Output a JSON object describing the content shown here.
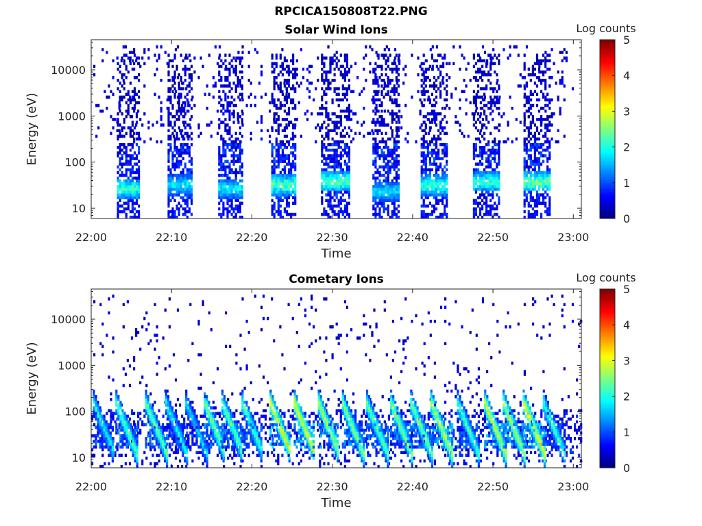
{
  "figure": {
    "title": "RPCICA150808T22.PNG"
  },
  "chart_data": [
    {
      "type": "heatmap",
      "title": "Solar Wind Ions",
      "xlabel": "Time",
      "ylabel": "Energy (eV)",
      "x_ticks": [
        "22:00",
        "22:10",
        "22:20",
        "22:30",
        "22:40",
        "22:50",
        "23:00"
      ],
      "x_range_minutes": [
        0,
        61
      ],
      "y_scale": "log",
      "y_ticks": [
        10,
        100,
        1000,
        10000
      ],
      "y_tick_labels": [
        "10",
        "100",
        "1000",
        "10000"
      ],
      "ylim": [
        6,
        45000
      ],
      "colorbar": {
        "label": "Log counts",
        "range": [
          0,
          5
        ],
        "ticks": [
          "0",
          "1",
          "2",
          "3",
          "4",
          "5"
        ],
        "colormap": "jet"
      },
      "bursts_minutes_start_end": [
        [
          3.2,
          6.0
        ],
        [
          9.5,
          12.5
        ],
        [
          15.8,
          18.8
        ],
        [
          22.4,
          25.5
        ],
        [
          28.6,
          32.0
        ],
        [
          35.0,
          38.2
        ],
        [
          41.0,
          44.2
        ],
        [
          47.5,
          50.8
        ],
        [
          53.8,
          57.0
        ]
      ],
      "peak_energy_ev": [
        25,
        30,
        25,
        30,
        35,
        22,
        30,
        35,
        35
      ],
      "peak_log_counts": [
        2.6,
        2.2,
        2.2,
        2.8,
        2.8,
        2.1,
        2.6,
        2.6,
        2.9
      ],
      "background": "sparse single counts 300-30000 eV",
      "grid": false,
      "legend": "colorbar-right"
    },
    {
      "type": "heatmap",
      "title": "Cometary Ions",
      "xlabel": "Time",
      "ylabel": "Energy (eV)",
      "x_ticks": [
        "22:00",
        "22:10",
        "22:20",
        "22:30",
        "22:40",
        "22:50",
        "23:00"
      ],
      "x_range_minutes": [
        0,
        61
      ],
      "y_scale": "log",
      "y_ticks": [
        10,
        100,
        1000,
        10000
      ],
      "y_tick_labels": [
        "10",
        "100",
        "1000",
        "10000"
      ],
      "ylim": [
        6,
        45000
      ],
      "colorbar": {
        "label": "Log counts",
        "range": [
          0,
          5
        ],
        "ticks": [
          "0",
          "1",
          "2",
          "3",
          "4",
          "5"
        ],
        "colormap": "jet"
      },
      "features_minutes": [
        1.5,
        4.3,
        8.0,
        10.5,
        13.0,
        15.3,
        17.5,
        20.0,
        23.5,
        26.5,
        29.5,
        32.5,
        35.5,
        38.5,
        41.0,
        43.5,
        46.8,
        50.2,
        52.5,
        55.0,
        57.5
      ],
      "feature_peak_log_counts": [
        2.3,
        2.7,
        2.8,
        2.2,
        2.0,
        2.9,
        2.8,
        2.6,
        3.5,
        3.6,
        3.2,
        3.0,
        2.8,
        3.0,
        2.9,
        3.3,
        2.6,
        3.4,
        3.3,
        3.6,
        2.5
      ],
      "band_energy_ev": [
        15,
        50
      ],
      "background": "sparse single counts 100-30000 eV",
      "grid": false,
      "legend": "colorbar-right"
    }
  ]
}
